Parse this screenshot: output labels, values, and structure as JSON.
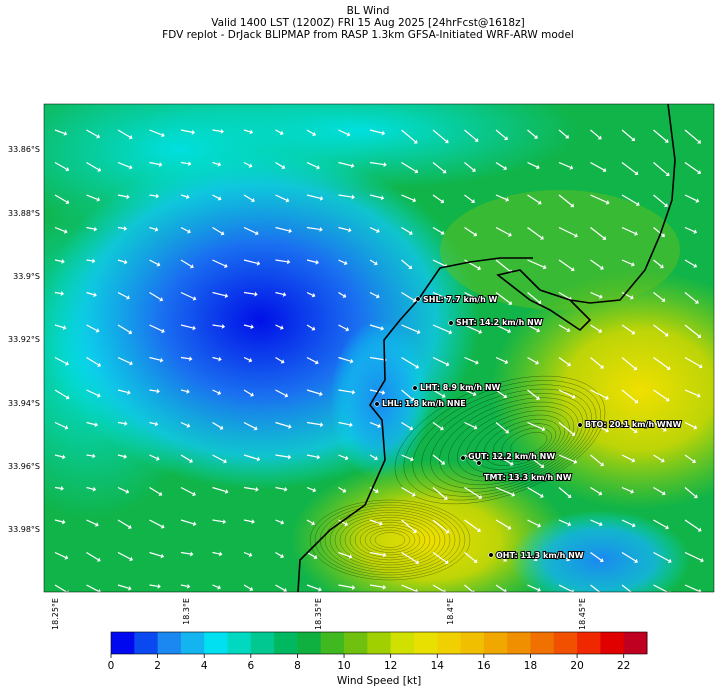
{
  "header": {
    "title": "BL Wind",
    "valid": "Valid 1400 LST (1200Z) FRI 15 Aug 2025 [24hrFcst@1618z]",
    "source": "FDV replot - DrJack BLIPMAP from RASP 1.3km GFSA-Initiated WRF-ARW model"
  },
  "map": {
    "lat_labels": [
      "33.86°S",
      "33.88°S",
      "33.9°S",
      "33.92°S",
      "33.94°S",
      "33.96°S",
      "33.98°S"
    ],
    "lon_labels": [
      "18.25°E",
      "18.3°E",
      "18.35°E",
      "18.4°E",
      "18.45°E"
    ],
    "stations": [
      "SHL: 7.7 km/h W",
      "SHT: 14.2 km/h NW",
      "LHT: 8.9 km/h NW",
      "LHL: 1.8 km/h NNE",
      "BTO: 20.1 km/h WNW",
      "GUT: 12.2 km/h NW",
      "TMT: 13.3 km/h NW",
      "OHT: 11.3 km/h NW"
    ]
  },
  "colorbar": {
    "label": "Wind Speed [kt]",
    "lim": [
      0,
      23
    ],
    "ticks": [
      0,
      2,
      4,
      6,
      8,
      10,
      12,
      14,
      16,
      18,
      20,
      22
    ],
    "colors": [
      "#0008f0",
      "#0a48f0",
      "#1a88f0",
      "#14b4f0",
      "#00e0f0",
      "#00d8c0",
      "#00c890",
      "#00b860",
      "#10b040",
      "#40b820",
      "#70c010",
      "#a0d000",
      "#d0e000",
      "#e8e000",
      "#f0d000",
      "#f0c000",
      "#f0a800",
      "#f09000",
      "#f07000",
      "#f05000",
      "#f02800",
      "#e00000",
      "#c00020"
    ]
  }
}
